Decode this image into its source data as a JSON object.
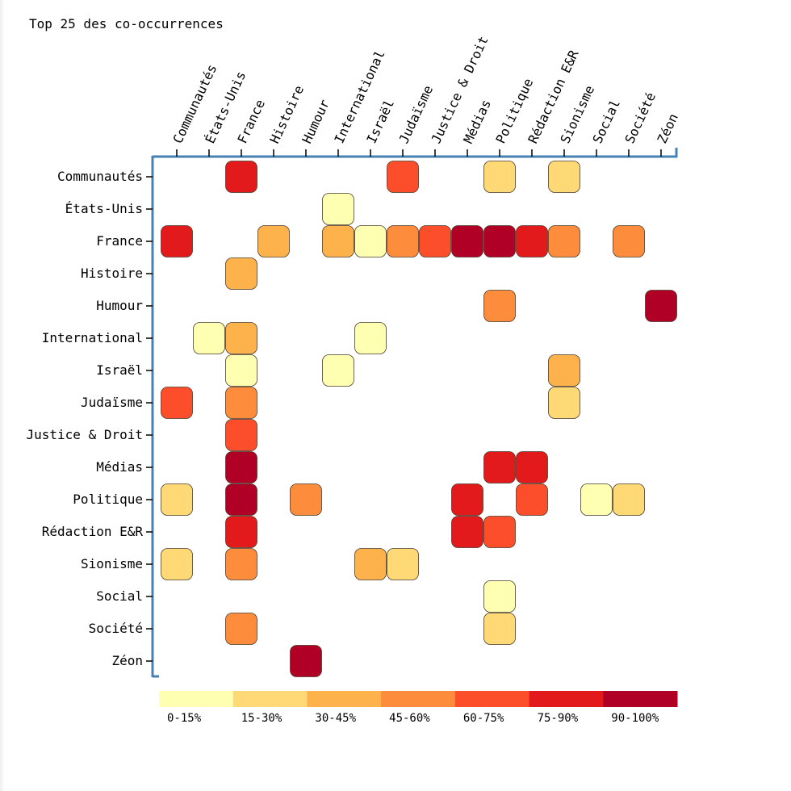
{
  "title": "Top 25 des co-occurrences",
  "chart_data": {
    "type": "heatmap",
    "title": "Top 25 des co-occurrences",
    "rows": [
      "Communautés",
      "États-Unis",
      "France",
      "Histoire",
      "Humour",
      "International",
      "Israël",
      "Judaïsme",
      "Justice & Droit",
      "Médias",
      "Politique",
      "Rédaction E&R",
      "Sionisme",
      "Social",
      "Société",
      "Zéon"
    ],
    "columns": [
      "Communautés",
      "États-Unis",
      "France",
      "Histoire",
      "Humour",
      "International",
      "Israël",
      "Judaïsme",
      "Justice & Droit",
      "Médias",
      "Politique",
      "Rédaction E&R",
      "Sionisme",
      "Social",
      "Société",
      "Zéon"
    ],
    "cells": [
      {
        "row": "Communautés",
        "col": "France",
        "bin": 5
      },
      {
        "row": "Communautés",
        "col": "Judaïsme",
        "bin": 4
      },
      {
        "row": "Communautés",
        "col": "Politique",
        "bin": 1
      },
      {
        "row": "Communautés",
        "col": "Sionisme",
        "bin": 1
      },
      {
        "row": "États-Unis",
        "col": "International",
        "bin": 0
      },
      {
        "row": "France",
        "col": "Communautés",
        "bin": 5
      },
      {
        "row": "France",
        "col": "Histoire",
        "bin": 2
      },
      {
        "row": "France",
        "col": "International",
        "bin": 2
      },
      {
        "row": "France",
        "col": "Israël",
        "bin": 0
      },
      {
        "row": "France",
        "col": "Judaïsme",
        "bin": 3
      },
      {
        "row": "France",
        "col": "Justice & Droit",
        "bin": 4
      },
      {
        "row": "France",
        "col": "Médias",
        "bin": 6
      },
      {
        "row": "France",
        "col": "Politique",
        "bin": 6
      },
      {
        "row": "France",
        "col": "Rédaction E&R",
        "bin": 5
      },
      {
        "row": "France",
        "col": "Sionisme",
        "bin": 3
      },
      {
        "row": "France",
        "col": "Société",
        "bin": 3
      },
      {
        "row": "Histoire",
        "col": "France",
        "bin": 2
      },
      {
        "row": "Humour",
        "col": "Politique",
        "bin": 3
      },
      {
        "row": "Humour",
        "col": "Zéon",
        "bin": 6
      },
      {
        "row": "International",
        "col": "États-Unis",
        "bin": 0
      },
      {
        "row": "International",
        "col": "France",
        "bin": 2
      },
      {
        "row": "International",
        "col": "Israël",
        "bin": 0
      },
      {
        "row": "Israël",
        "col": "France",
        "bin": 0
      },
      {
        "row": "Israël",
        "col": "International",
        "bin": 0
      },
      {
        "row": "Israël",
        "col": "Sionisme",
        "bin": 2
      },
      {
        "row": "Judaïsme",
        "col": "Communautés",
        "bin": 4
      },
      {
        "row": "Judaïsme",
        "col": "France",
        "bin": 3
      },
      {
        "row": "Judaïsme",
        "col": "Sionisme",
        "bin": 1
      },
      {
        "row": "Justice & Droit",
        "col": "France",
        "bin": 4
      },
      {
        "row": "Médias",
        "col": "France",
        "bin": 6
      },
      {
        "row": "Médias",
        "col": "Politique",
        "bin": 5
      },
      {
        "row": "Médias",
        "col": "Rédaction E&R",
        "bin": 5
      },
      {
        "row": "Politique",
        "col": "Communautés",
        "bin": 1
      },
      {
        "row": "Politique",
        "col": "France",
        "bin": 6
      },
      {
        "row": "Politique",
        "col": "Humour",
        "bin": 3
      },
      {
        "row": "Politique",
        "col": "Médias",
        "bin": 5
      },
      {
        "row": "Politique",
        "col": "Rédaction E&R",
        "bin": 4
      },
      {
        "row": "Politique",
        "col": "Social",
        "bin": 0
      },
      {
        "row": "Politique",
        "col": "Société",
        "bin": 1
      },
      {
        "row": "Rédaction E&R",
        "col": "France",
        "bin": 5
      },
      {
        "row": "Rédaction E&R",
        "col": "Médias",
        "bin": 5
      },
      {
        "row": "Rédaction E&R",
        "col": "Politique",
        "bin": 4
      },
      {
        "row": "Sionisme",
        "col": "Communautés",
        "bin": 1
      },
      {
        "row": "Sionisme",
        "col": "France",
        "bin": 3
      },
      {
        "row": "Sionisme",
        "col": "Israël",
        "bin": 2
      },
      {
        "row": "Sionisme",
        "col": "Judaïsme",
        "bin": 1
      },
      {
        "row": "Social",
        "col": "Politique",
        "bin": 0
      },
      {
        "row": "Société",
        "col": "France",
        "bin": 3
      },
      {
        "row": "Société",
        "col": "Politique",
        "bin": 1
      },
      {
        "row": "Zéon",
        "col": "Humour",
        "bin": 6
      }
    ],
    "legend": [
      {
        "label": "0-15%",
        "color": "#ffffb2"
      },
      {
        "label": "15-30%",
        "color": "#fed976"
      },
      {
        "label": "30-45%",
        "color": "#feb24c"
      },
      {
        "label": "45-60%",
        "color": "#fd8d3c"
      },
      {
        "label": "60-75%",
        "color": "#fc4e2a"
      },
      {
        "label": "75-90%",
        "color": "#e31a1c"
      },
      {
        "label": "90-100%",
        "color": "#b10026"
      }
    ],
    "axis_color": "#4682b4"
  }
}
